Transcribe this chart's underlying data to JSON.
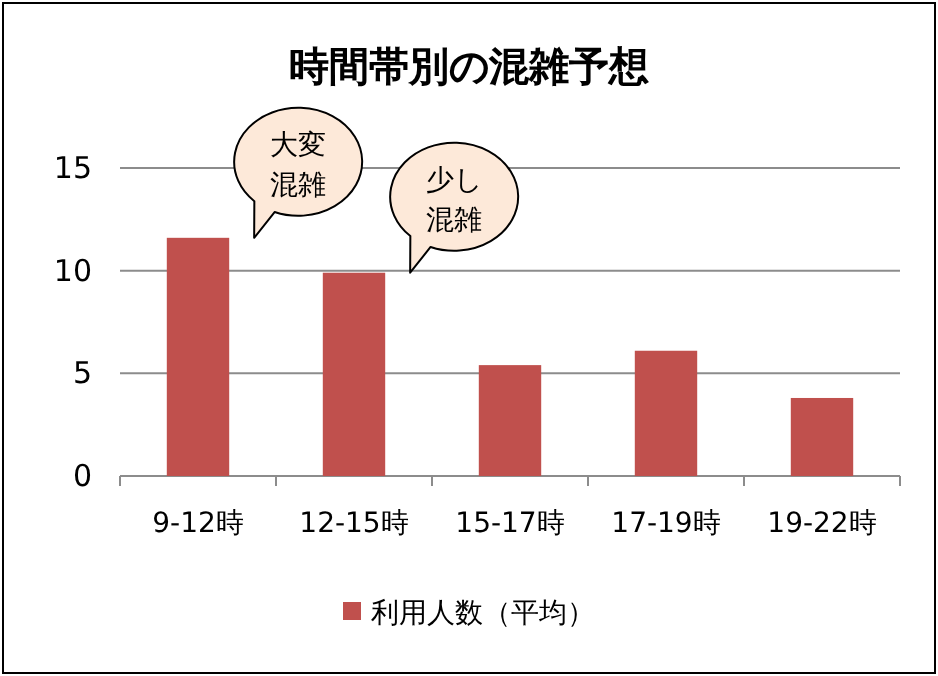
{
  "chart_data": {
    "type": "bar",
    "title": "時間帯別の混雑予想",
    "categories": [
      "9-12時",
      "12-15時",
      "15-17時",
      "17-19時",
      "19-22時"
    ],
    "series": [
      {
        "name": "利用人数（平均）",
        "color": "#c0504d",
        "values": [
          11.6,
          9.9,
          5.4,
          6.1,
          3.8
        ]
      }
    ],
    "ylim": [
      0,
      15
    ],
    "yticks": [
      0,
      5,
      10,
      15
    ],
    "grid": "y",
    "legend": "bottom",
    "annotations": [
      {
        "text": "大変混雑",
        "x": "9-12時",
        "y": 11.6
      },
      {
        "text": "少し混雑",
        "x": "12-15時",
        "y": 9.9
      }
    ]
  }
}
